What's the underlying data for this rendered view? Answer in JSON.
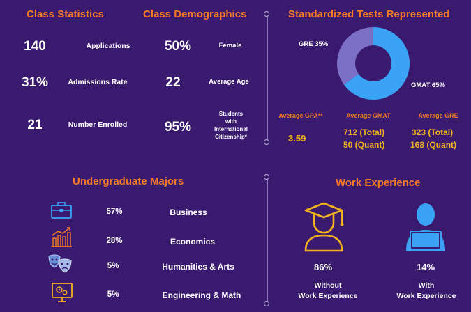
{
  "class_statistics": {
    "title": "Class Statistics",
    "rows": [
      {
        "value": "140",
        "label": "Applications"
      },
      {
        "value": "31%",
        "label": "Admissions Rate"
      },
      {
        "value": "21",
        "label": "Number Enrolled"
      }
    ]
  },
  "class_demographics": {
    "title": "Class Demographics",
    "rows": [
      {
        "value": "50%",
        "label": "Female"
      },
      {
        "value": "22",
        "label": "Average Age"
      },
      {
        "value": "95%",
        "label_lines": [
          "Students",
          "with",
          "International",
          "Citizenship*"
        ]
      }
    ]
  },
  "standardized_tests": {
    "title": "Standardized Tests Represented",
    "chart_data": {
      "type": "pie",
      "categories": [
        "GRE",
        "GMAT"
      ],
      "values": [
        35,
        65
      ],
      "slice_labels": [
        "GRE 35%",
        "GMAT 65%"
      ],
      "colors": [
        "#7b6fc6",
        "#3aa3f5"
      ]
    },
    "averages": [
      {
        "label": "Average GPA**",
        "lines": [
          "3.59"
        ]
      },
      {
        "label": "Average GMAT",
        "lines": [
          "712 (Total)",
          "50 (Quant)"
        ]
      },
      {
        "label": "Average GRE",
        "lines": [
          "323 (Total)",
          "168 (Quant)"
        ]
      }
    ]
  },
  "undergraduate_majors": {
    "title": "Undergraduate Majors",
    "items": [
      {
        "icon": "briefcase-icon",
        "percent": "57%",
        "name": "Business"
      },
      {
        "icon": "bar-chart-icon",
        "percent": "28%",
        "name": "Economics"
      },
      {
        "icon": "theater-masks-icon",
        "percent": "5%",
        "name": "Humanities & Arts"
      },
      {
        "icon": "engineering-monitor-icon",
        "percent": "5%",
        "name": "Engineering & Math"
      }
    ]
  },
  "work_experience": {
    "title": "Work Experience",
    "items": [
      {
        "icon": "graduate-icon",
        "percent": "86%",
        "label_lines": [
          "Without",
          "Work Experience"
        ],
        "color": "#f2b21b"
      },
      {
        "icon": "professional-icon",
        "percent": "14%",
        "label_lines": [
          "With",
          "Work Experience"
        ],
        "color": "#3aa3f5"
      }
    ]
  },
  "colors": {
    "background": "#3a1a6e",
    "heading": "#f57c25",
    "gold": "#f2b21b",
    "blue": "#3aa3f5",
    "purple_light": "#7b6fc6"
  }
}
